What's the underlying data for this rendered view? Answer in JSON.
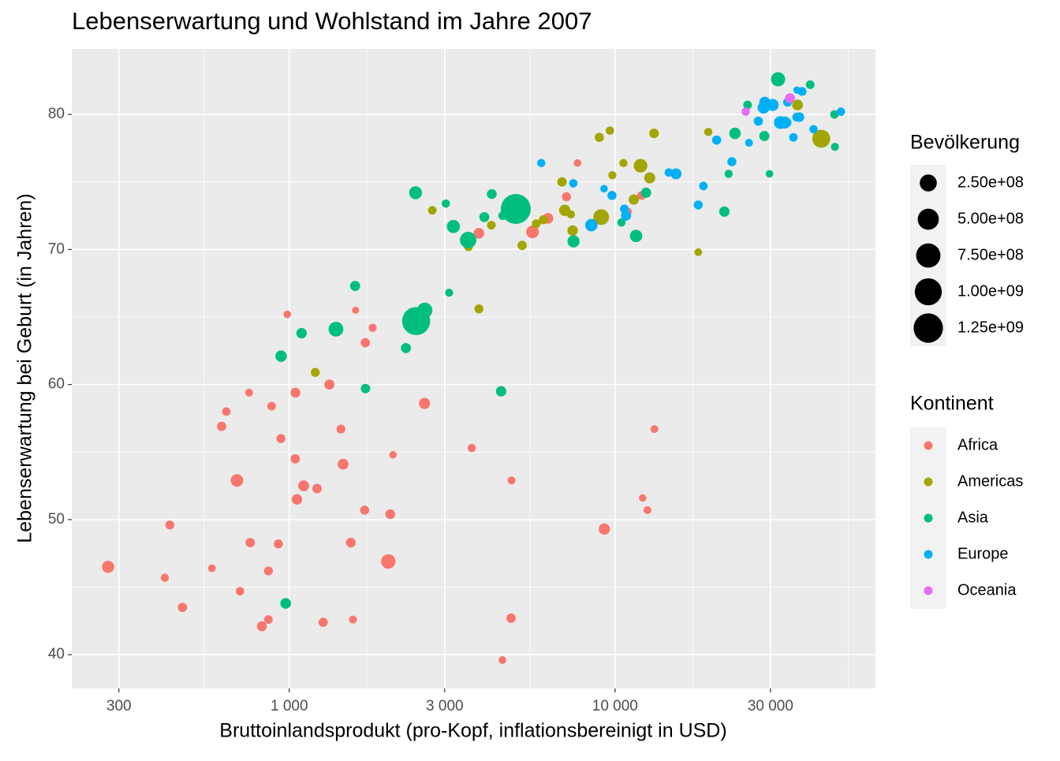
{
  "chart_data": {
    "type": "scatter",
    "title": "Lebenserwartung und Wohlstand im Jahre 2007",
    "x_label": "Bruttoinlandsprodukt (pro-Kopf, inflationsbereinigt in USD)",
    "y_label": "Lebenserwartung bei Geburt (in Jahren)",
    "x_scale": "log",
    "xlim": [
      215,
      63000
    ],
    "ylim": [
      37.5,
      84.85
    ],
    "xticks": [
      300,
      {
        "value": 1000,
        "label": "1 000"
      },
      {
        "value": 3000,
        "label": "3 000"
      },
      {
        "value": 10000,
        "label": "10 000"
      },
      {
        "value": 30000,
        "label": "30 000"
      }
    ],
    "yticks": [
      40,
      50,
      60,
      70,
      80
    ],
    "grid": true,
    "minor_grid": true,
    "legend": "right",
    "color_legend_title": "Kontinent",
    "size_legend": {
      "title": "Bevölkerung",
      "breaks": [
        {
          "value": 250000000,
          "label": "2.50e+08"
        },
        {
          "value": 500000000,
          "label": "5.00e+08"
        },
        {
          "value": 750000000,
          "label": "7.50e+08"
        },
        {
          "value": 1000000000,
          "label": "1.00e+09"
        },
        {
          "value": 1250000000,
          "label": "1.25e+09"
        }
      ]
    },
    "series": [
      {
        "name": "Africa",
        "color": "#F8766D",
        "x": [
          6223,
          4797,
          1441,
          12570,
          1217,
          430,
          2042,
          706,
          1704,
          986,
          278,
          3633,
          1545,
          2082,
          5581,
          12154,
          641,
          691,
          13206,
          753,
          1328,
          943,
          579,
          1463,
          1569,
          415,
          12057,
          1045,
          759,
          1043,
          1803,
          10957,
          3820,
          824,
          4811,
          620,
          2014,
          7670,
          863,
          1598,
          1712,
          863,
          926,
          9270,
          2602,
          4513,
          1107,
          883,
          7093,
          1056,
          1271,
          470
        ],
        "values": [
          72.3,
          42.7,
          56.7,
          50.7,
          52.3,
          49.6,
          50.4,
          44.7,
          50.7,
          65.2,
          46.5,
          55.3,
          48.3,
          54.8,
          71.3,
          51.6,
          58.0,
          52.9,
          56.7,
          59.4,
          60.0,
          56.0,
          46.4,
          54.1,
          42.6,
          45.7,
          74.0,
          59.4,
          48.3,
          54.5,
          64.2,
          72.8,
          71.2,
          42.1,
          52.9,
          56.9,
          46.9,
          76.4,
          46.2,
          65.5,
          63.1,
          42.6,
          48.2,
          49.3,
          58.6,
          39.6,
          52.5,
          58.4,
          73.9,
          51.5,
          42.4,
          43.5
        ],
        "sizes": [
          33300000,
          12400000,
          8080000,
          1640000,
          14300000,
          8390000,
          17700000,
          4370000,
          10200000,
          710000,
          64600000,
          3800000,
          18000000,
          500000,
          80300000,
          550000,
          4900000,
          76500000,
          1450000,
          1690000,
          22900000,
          9900000,
          1470000,
          35600000,
          2000000,
          3190000,
          6000000,
          19200000,
          13300000,
          12000000,
          3270000,
          1250000,
          33800000,
          20000000,
          2060000,
          12900000,
          135000000,
          800000,
          8860000,
          200000,
          12300000,
          6140000,
          9120000,
          44000000,
          42300000,
          1130000,
          38100000,
          5700000,
          10300000,
          29200000,
          11700000,
          12300000
        ]
      },
      {
        "name": "Americas",
        "color": "#A3A500",
        "x": [
          12779,
          3822,
          9066,
          36319,
          13172,
          7007,
          9645,
          8948,
          6025,
          6873,
          5728,
          5186,
          1202,
          3548,
          7321,
          11978,
          2749,
          9809,
          4173,
          7409,
          19329,
          18009,
          42952,
          10611,
          11416
        ],
        "values": [
          75.3,
          65.6,
          72.4,
          80.7,
          78.6,
          72.9,
          78.8,
          78.3,
          72.2,
          75.0,
          71.9,
          70.3,
          60.9,
          70.2,
          72.6,
          76.2,
          72.9,
          75.5,
          71.8,
          71.4,
          78.7,
          69.8,
          78.2,
          76.4,
          73.7
        ],
        "sizes": [
          40300000,
          9100000,
          190000000,
          33400000,
          16300000,
          44200000,
          4100000,
          11400000,
          9300000,
          13800000,
          6900000,
          12600000,
          8500000,
          7500000,
          2800000,
          108000000,
          5700000,
          3200000,
          6700000,
          28700000,
          3900000,
          1060000,
          301000000,
          3400000,
          26100000
        ]
      },
      {
        "name": "Asia",
        "color": "#00BF7D",
        "x": [
          975,
          29796,
          1391,
          1714,
          4959,
          39725,
          2452,
          3541,
          11606,
          4471,
          25523,
          31656,
          4519,
          1593,
          23348,
          47307,
          10461,
          12452,
          3096,
          944,
          1091,
          22316,
          2606,
          3190,
          21655,
          47143,
          3970,
          4185,
          28718,
          7458,
          2442,
          3025,
          2281
        ],
        "values": [
          43.8,
          75.6,
          64.1,
          59.7,
          73.0,
          82.2,
          64.7,
          70.7,
          71.0,
          59.5,
          80.7,
          82.6,
          72.5,
          67.3,
          78.6,
          77.6,
          72.0,
          74.2,
          66.8,
          62.1,
          63.8,
          75.6,
          65.5,
          71.7,
          72.8,
          80.0,
          72.4,
          74.1,
          78.4,
          70.6,
          74.2,
          73.4,
          62.7
        ],
        "sizes": [
          31900000,
          700000,
          150000000,
          14100000,
          1318700000,
          6980000,
          1110000000,
          223500000,
          69500000,
          27500000,
          6400000,
          127500000,
          6050000,
          23300000,
          49000000,
          2500000,
          3900000,
          24800000,
          2870000,
          47800000,
          28900000,
          3200000,
          169000000,
          91100000,
          27600000,
          4550000,
          20400000,
          19300000,
          23200000,
          65100000,
          85300000,
          4000000,
          22200000
        ]
      },
      {
        "name": "Europe",
        "color": "#00B0F6",
        "x": [
          5937,
          36126,
          33693,
          7446,
          10681,
          14619,
          22833,
          35278,
          33207,
          30470,
          32170,
          27538,
          18009,
          36181,
          40676,
          28570,
          9254,
          36798,
          49357,
          15390,
          20510,
          10808,
          9787,
          18678,
          25768,
          28821,
          33860,
          37506,
          8458,
          33203
        ],
        "values": [
          76.4,
          79.8,
          79.4,
          74.9,
          73.0,
          75.7,
          76.5,
          78.3,
          79.3,
          80.7,
          79.4,
          79.5,
          73.3,
          81.8,
          78.9,
          80.5,
          74.5,
          79.8,
          80.2,
          75.6,
          78.1,
          72.5,
          74.0,
          74.7,
          77.9,
          80.9,
          80.9,
          81.7,
          71.8,
          79.4
        ],
        "sizes": [
          3600000,
          8200000,
          10400000,
          4550000,
          7300000,
          4500000,
          10200000,
          5500000,
          5200000,
          61100000,
          82400000,
          10700000,
          10000000,
          300000,
          4100000,
          58100000,
          680000,
          16600000,
          4600000,
          38500000,
          10600000,
          22300000,
          10200000,
          5400000,
          2000000,
          40400000,
          9000000,
          7550000,
          71200000,
          60800000
        ]
      },
      {
        "name": "Oceania",
        "color": "#E76BF3",
        "x": [
          34435,
          25185
        ],
        "values": [
          81.2,
          80.2
        ],
        "sizes": [
          20400000,
          4100000
        ]
      }
    ]
  }
}
